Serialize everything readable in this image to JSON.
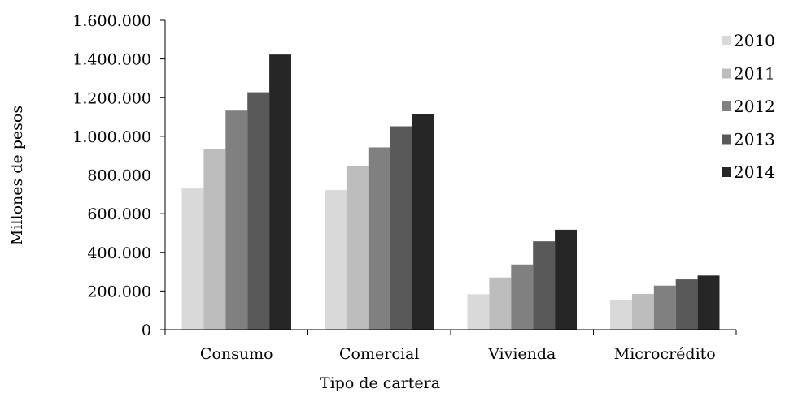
{
  "chart_data": {
    "type": "bar",
    "title": "",
    "xlabel": "Tipo de cartera",
    "ylabel": "Millones de pesos",
    "ylim": [
      0,
      1600000
    ],
    "yticks": [
      0,
      200000,
      400000,
      600000,
      800000,
      1000000,
      1200000,
      1400000,
      1600000
    ],
    "ytick_labels": [
      "0",
      "200.000",
      "400.000",
      "600.000",
      "800.000",
      "1.000.000",
      "1.200.000",
      "1.400.000",
      "1.600.000"
    ],
    "categories": [
      "Consumo",
      "Comercial",
      "Vivienda",
      "Microcrédito"
    ],
    "series": [
      {
        "name": "2010",
        "color": "#d9d9d9",
        "values": [
          730000,
          722000,
          183000,
          153000
        ]
      },
      {
        "name": "2011",
        "color": "#bdbdbd",
        "values": [
          935000,
          848000,
          270000,
          185000
        ]
      },
      {
        "name": "2012",
        "color": "#808080",
        "values": [
          1133000,
          943000,
          337000,
          228000
        ]
      },
      {
        "name": "2013",
        "color": "#595959",
        "values": [
          1228000,
          1052000,
          457000,
          260000
        ]
      },
      {
        "name": "2014",
        "color": "#262626",
        "values": [
          1423000,
          1115000,
          517000,
          280000
        ]
      }
    ],
    "legend_position": "right",
    "grid": false
  }
}
